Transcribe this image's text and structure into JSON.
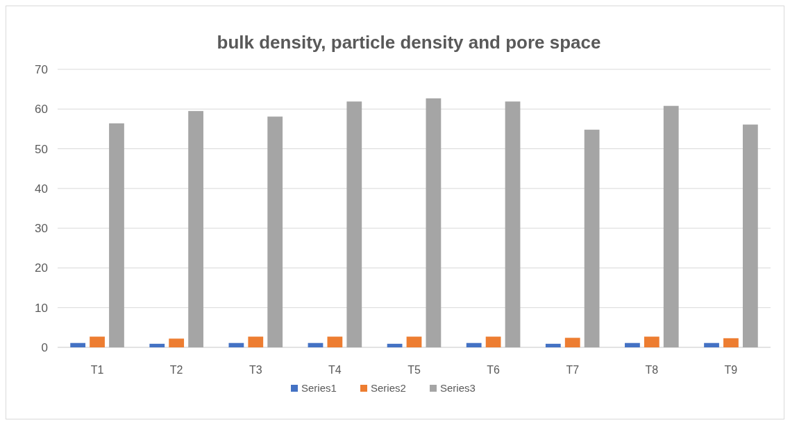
{
  "chart_data": {
    "type": "bar",
    "title": "bulk density, particle density and  pore space",
    "categories": [
      "T1",
      "T2",
      "T3",
      "T4",
      "T5",
      "T6",
      "T7",
      "T8",
      "T9"
    ],
    "series": [
      {
        "name": "Series1",
        "color": "#4472c4",
        "values": [
          1.1,
          0.9,
          1.1,
          1.1,
          0.9,
          1.1,
          0.9,
          1.1,
          1.1
        ]
      },
      {
        "name": "Series2",
        "color": "#ed7d31",
        "values": [
          2.7,
          2.2,
          2.7,
          2.7,
          2.7,
          2.7,
          2.4,
          2.7,
          2.3
        ]
      },
      {
        "name": "Series3",
        "color": "#a5a5a5",
        "values": [
          56.4,
          59.5,
          58.1,
          61.9,
          62.7,
          61.9,
          54.8,
          60.8,
          56.1
        ]
      }
    ],
    "ylim": [
      0,
      70
    ],
    "yticks": [
      0,
      10,
      20,
      30,
      40,
      50,
      60,
      70
    ],
    "grid": "y",
    "legend": "bottom"
  }
}
